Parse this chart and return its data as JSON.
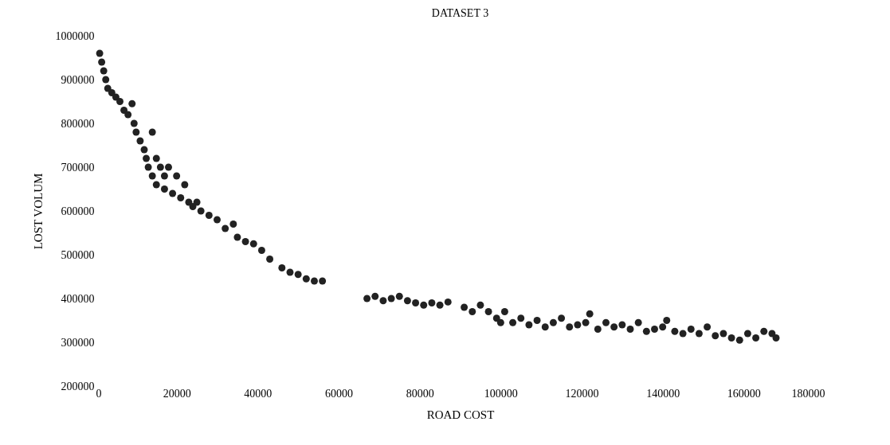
{
  "chart_data": {
    "type": "scatter",
    "title": "DATASET 3",
    "xlabel": "ROAD COST",
    "ylabel": "LOST VOLUM",
    "xlim": [
      0,
      180000
    ],
    "xticks": [
      0,
      20000,
      40000,
      60000,
      80000,
      100000,
      120000,
      140000,
      160000,
      180000
    ],
    "ylim": [
      200000,
      1000000
    ],
    "yticks": [
      200000,
      300000,
      400000,
      500000,
      600000,
      700000,
      800000,
      900000,
      1000000
    ],
    "grid": false,
    "marker": "circle",
    "x": [
      1000,
      1500,
      2000,
      2500,
      3000,
      4000,
      5000,
      6000,
      7000,
      8000,
      9000,
      9500,
      10000,
      11000,
      12000,
      12500,
      13000,
      14000,
      14000,
      15000,
      15000,
      16000,
      17000,
      17000,
      18000,
      19000,
      20000,
      21000,
      22000,
      23000,
      24000,
      25000,
      26000,
      28000,
      30000,
      32000,
      34000,
      35000,
      37000,
      39000,
      41000,
      43000,
      46000,
      48000,
      50000,
      52000,
      54000,
      56000,
      67000,
      69000,
      71000,
      73000,
      75000,
      77000,
      79000,
      81000,
      83000,
      85000,
      87000,
      91000,
      93000,
      95000,
      97000,
      99000,
      100000,
      101000,
      103000,
      105000,
      107000,
      109000,
      111000,
      113000,
      115000,
      117000,
      119000,
      121000,
      122000,
      124000,
      126000,
      128000,
      130000,
      132000,
      134000,
      136000,
      138000,
      140000,
      141000,
      143000,
      145000,
      147000,
      149000,
      151000,
      153000,
      155000,
      157000,
      159000,
      161000,
      163000,
      165000,
      167000,
      168000
    ],
    "series": [
      {
        "color": "#222222",
        "values": [
          960000,
          940000,
          920000,
          900000,
          880000,
          870000,
          860000,
          850000,
          830000,
          820000,
          845000,
          800000,
          780000,
          760000,
          740000,
          720000,
          700000,
          780000,
          680000,
          720000,
          660000,
          700000,
          680000,
          650000,
          700000,
          640000,
          680000,
          630000,
          660000,
          620000,
          610000,
          620000,
          600000,
          590000,
          580000,
          560000,
          570000,
          540000,
          530000,
          525000,
          510000,
          490000,
          470000,
          460000,
          455000,
          445000,
          440000,
          440000,
          400000,
          405000,
          395000,
          400000,
          405000,
          395000,
          390000,
          385000,
          390000,
          385000,
          392000,
          380000,
          370000,
          385000,
          370000,
          355000,
          345000,
          370000,
          345000,
          355000,
          340000,
          350000,
          335000,
          345000,
          355000,
          335000,
          340000,
          345000,
          365000,
          330000,
          345000,
          335000,
          340000,
          330000,
          345000,
          325000,
          330000,
          335000,
          350000,
          325000,
          320000,
          330000,
          320000,
          335000,
          315000,
          320000,
          310000,
          305000,
          320000,
          310000,
          325000,
          320000,
          310000
        ]
      }
    ]
  }
}
